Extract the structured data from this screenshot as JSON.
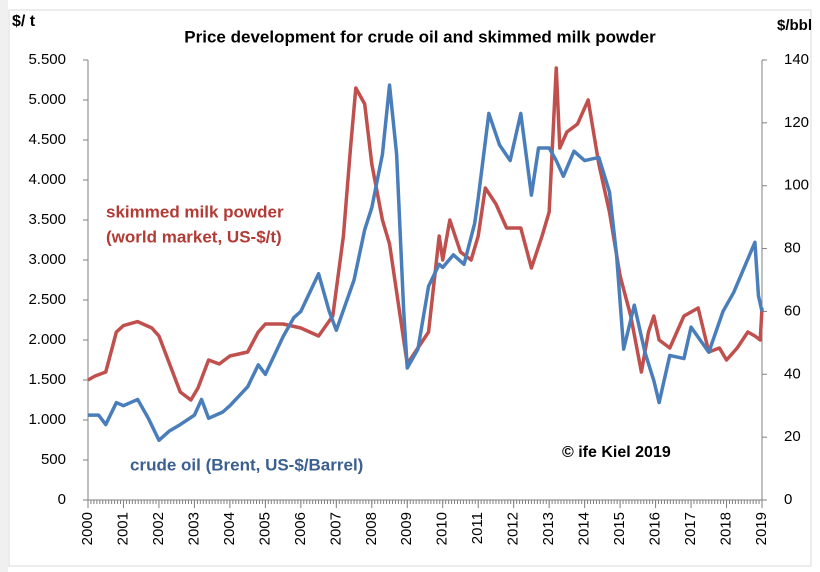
{
  "chart_data": {
    "type": "line",
    "title": "Price development for crude oil and skimmed milk powder",
    "y_label": "$/ t",
    "y2_label": "$/bbl",
    "annotations": [
      "skimmed milk powder",
      "(world market, US-$/t)",
      "crude oil (Brent, US-$/Barrel)",
      "© ife Kiel 2019"
    ],
    "xlim": [
      2000,
      2019
    ],
    "xticks": [
      2000,
      2001,
      2002,
      2003,
      2004,
      2005,
      2006,
      2007,
      2008,
      2009,
      2010,
      2011,
      2012,
      2013,
      2014,
      2015,
      2016,
      2017,
      2018,
      2019
    ],
    "ylim": [
      0,
      5500
    ],
    "yticks": [
      0,
      500,
      {
        "value": 1000,
        "label": "1.000"
      },
      {
        "value": 1500,
        "label": "1.500"
      },
      {
        "value": 2000,
        "label": "2.000"
      },
      {
        "value": 2500,
        "label": "2.500"
      },
      {
        "value": 3000,
        "label": "3.000"
      },
      {
        "value": 3500,
        "label": "3.500"
      },
      {
        "value": 4000,
        "label": "4.000"
      },
      {
        "value": 4500,
        "label": "4.500"
      },
      {
        "value": 5000,
        "label": "5.000"
      },
      {
        "value": 5500,
        "label": "5.500"
      }
    ],
    "y2lim": [
      0,
      140
    ],
    "y2ticks": [
      0,
      20,
      40,
      60,
      80,
      100,
      120,
      140
    ],
    "series": [
      {
        "name": "skimmed milk powder",
        "color": "#c0504d",
        "x": [
          2000.0,
          2000.2,
          2000.5,
          2000.8,
          2001.0,
          2001.4,
          2001.8,
          2002.0,
          2002.3,
          2002.6,
          2002.9,
          2003.1,
          2003.4,
          2003.7,
          2004.0,
          2004.5,
          2004.8,
          2005.0,
          2005.5,
          2006.0,
          2006.5,
          2006.9,
          2007.2,
          2007.4,
          2007.55,
          2007.8,
          2008.0,
          2008.3,
          2008.5,
          2008.8,
          2009.0,
          2009.3,
          2009.6,
          2009.9,
          2010.0,
          2010.2,
          2010.5,
          2010.8,
          2011.0,
          2011.2,
          2011.5,
          2011.8,
          2012.2,
          2012.5,
          2012.8,
          2013.0,
          2013.2,
          2013.3,
          2013.5,
          2013.8,
          2014.1,
          2014.4,
          2014.7,
          2015.0,
          2015.3,
          2015.6,
          2015.8,
          2015.95,
          2016.1,
          2016.4,
          2016.8,
          2017.0,
          2017.2,
          2017.5,
          2017.8,
          2018.0,
          2018.3,
          2018.6,
          2018.8,
          2018.95,
          2019.0
        ],
        "values": [
          1500,
          1550,
          1600,
          2100,
          2180,
          2230,
          2150,
          2050,
          1700,
          1350,
          1250,
          1400,
          1750,
          1700,
          1800,
          1850,
          2100,
          2200,
          2200,
          2150,
          2050,
          2300,
          3300,
          4400,
          5150,
          4950,
          4200,
          3500,
          3200,
          2300,
          1700,
          1900,
          2100,
          3300,
          3000,
          3500,
          3100,
          3000,
          3300,
          3900,
          3700,
          3400,
          3400,
          2900,
          3300,
          3600,
          5400,
          4400,
          4600,
          4700,
          5000,
          4200,
          3600,
          2800,
          2300,
          1600,
          2100,
          2300,
          2000,
          1900,
          2300,
          2350,
          2400,
          1850,
          1900,
          1750,
          1900,
          2100,
          2050,
          2000,
          2400
        ]
      },
      {
        "name": "crude oil (Brent, US-$/Barrel)",
        "color": "#4a7ebb",
        "axis": "y2",
        "x": [
          2000.0,
          2000.3,
          2000.5,
          2000.8,
          2001.0,
          2001.4,
          2001.7,
          2002.0,
          2002.3,
          2002.6,
          2003.0,
          2003.2,
          2003.4,
          2003.8,
          2004.0,
          2004.5,
          2004.8,
          2005.0,
          2005.5,
          2005.8,
          2006.0,
          2006.5,
          2006.8,
          2007.0,
          2007.5,
          2007.8,
          2008.0,
          2008.3,
          2008.5,
          2008.7,
          2008.9,
          2009.0,
          2009.3,
          2009.6,
          2009.9,
          2010.0,
          2010.3,
          2010.6,
          2010.9,
          2011.0,
          2011.3,
          2011.6,
          2011.9,
          2012.2,
          2012.5,
          2012.7,
          2013.0,
          2013.2,
          2013.4,
          2013.7,
          2014.0,
          2014.4,
          2014.7,
          2014.9,
          2015.1,
          2015.4,
          2015.7,
          2015.95,
          2016.1,
          2016.4,
          2016.8,
          2017.0,
          2017.5,
          2017.9,
          2018.2,
          2018.5,
          2018.8,
          2018.9,
          2019.0
        ],
        "values": [
          27,
          27,
          24,
          31,
          30,
          32,
          26,
          19,
          22,
          24,
          27,
          32,
          26,
          28,
          30,
          36,
          43,
          40,
          52,
          58,
          60,
          72,
          60,
          54,
          70,
          86,
          93,
          110,
          132,
          110,
          60,
          42,
          48,
          68,
          75,
          74,
          78,
          75,
          88,
          96,
          123,
          113,
          108,
          123,
          97,
          112,
          112,
          108,
          103,
          111,
          108,
          109,
          98,
          78,
          48,
          62,
          47,
          38,
          31,
          46,
          45,
          55,
          47,
          60,
          66,
          74,
          82,
          65,
          60
        ]
      }
    ]
  }
}
